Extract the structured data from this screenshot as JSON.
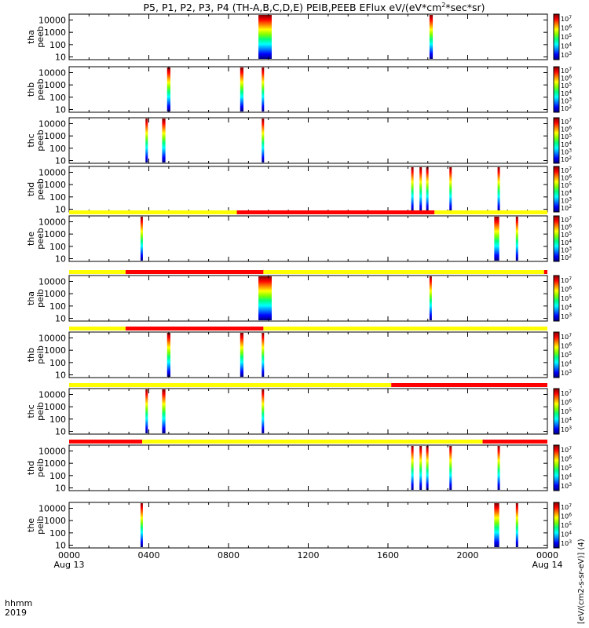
{
  "chart_data": {
    "type": "heatmap",
    "title": "P5, P1, P2, P3, P4 (TH-A,B,C,D,E) PEIB,PEEB EFlux eV/(eV*cm",
    "title_sup": "2",
    "title_tail": "*sec*sr)",
    "x_axis": {
      "label_line1": "hhmm",
      "label_line2": "2019",
      "range": [
        "2019-08-13 00:00",
        "2019-08-14 00:00"
      ],
      "ticks": [
        "0000",
        "0400",
        "0800",
        "1200",
        "1600",
        "2000",
        "0000"
      ],
      "tick_sublabels": {
        "first": "Aug 13",
        "last": "Aug 14"
      }
    },
    "y_axis": {
      "scale": "log",
      "ticks": [
        "10",
        "100",
        "1000",
        "10000"
      ]
    },
    "colorbar_label": "[eV/(cm2-s-sr-eV)] (4)",
    "colorbar_ticks": [
      [
        "10",
        "10",
        "10",
        "10",
        "10"
      ],
      [
        "10",
        "10",
        "10",
        "10",
        "10",
        "10"
      ]
    ],
    "colorbar_ticks_exp": [
      [
        "3",
        "4",
        "5",
        "6",
        "7"
      ],
      [
        "2",
        "3",
        "4",
        "5",
        "6",
        "7"
      ]
    ],
    "panels": [
      {
        "probe": "tha",
        "product": "peeb",
        "colorbar": 0,
        "bursts": [
          {
            "start": "09:30",
            "end": "10:10"
          },
          {
            "start": "18:05",
            "end": "18:15"
          }
        ]
      },
      {
        "probe": "thb",
        "product": "peeb",
        "colorbar": 1,
        "bursts": [
          {
            "start": "04:55",
            "end": "05:05"
          },
          {
            "start": "08:35",
            "end": "08:45"
          },
          {
            "start": "09:40",
            "end": "09:45"
          }
        ]
      },
      {
        "probe": "thc",
        "product": "peeb",
        "colorbar": 1,
        "bursts": [
          {
            "start": "03:50",
            "end": "03:55"
          },
          {
            "start": "04:40",
            "end": "04:50"
          },
          {
            "start": "09:40",
            "end": "09:45"
          }
        ]
      },
      {
        "probe": "thd",
        "product": "peeb",
        "colorbar": 1,
        "bursts": [
          {
            "start": "17:10",
            "end": "17:15"
          },
          {
            "start": "17:35",
            "end": "17:40"
          },
          {
            "start": "17:55",
            "end": "18:00"
          },
          {
            "start": "19:05",
            "end": "19:10"
          },
          {
            "start": "21:30",
            "end": "21:35"
          }
        ]
      },
      {
        "probe": "the",
        "product": "peeb",
        "colorbar": 1,
        "bursts": [
          {
            "start": "03:35",
            "end": "03:40"
          },
          {
            "start": "21:20",
            "end": "21:35"
          },
          {
            "start": "22:25",
            "end": "22:30"
          }
        ],
        "bar": [
          {
            "state": "yellow",
            "start": "00:00",
            "end": "08:25"
          },
          {
            "state": "red",
            "start": "08:25",
            "end": "18:20"
          },
          {
            "state": "yellow",
            "start": "18:20",
            "end": "24:00"
          }
        ]
      },
      {
        "probe": "tha",
        "product": "peib",
        "colorbar": 0,
        "bursts": [
          {
            "start": "09:30",
            "end": "10:10"
          },
          {
            "start": "18:05",
            "end": "18:10"
          }
        ],
        "bar": [
          {
            "state": "yellow",
            "start": "00:00",
            "end": "02:50"
          },
          {
            "state": "red",
            "start": "02:50",
            "end": "09:45"
          },
          {
            "state": "yellow",
            "start": "09:45",
            "end": "23:50"
          },
          {
            "state": "red",
            "start": "23:50",
            "end": "24:00"
          }
        ]
      },
      {
        "probe": "thb",
        "product": "peib",
        "colorbar": 0,
        "bursts": [
          {
            "start": "04:55",
            "end": "05:05"
          },
          {
            "start": "08:35",
            "end": "08:45"
          },
          {
            "start": "09:40",
            "end": "09:45"
          }
        ],
        "bar": [
          {
            "state": "yellow",
            "start": "00:00",
            "end": "02:50"
          },
          {
            "state": "red",
            "start": "02:50",
            "end": "09:45"
          },
          {
            "state": "yellow",
            "start": "09:45",
            "end": "24:00"
          }
        ]
      },
      {
        "probe": "thc",
        "product": "peib",
        "colorbar": 0,
        "bursts": [
          {
            "start": "03:50",
            "end": "03:55"
          },
          {
            "start": "04:40",
            "end": "04:50"
          },
          {
            "start": "09:40",
            "end": "09:45"
          }
        ],
        "bar": [
          {
            "state": "yellow",
            "start": "00:00",
            "end": "16:10"
          },
          {
            "state": "red",
            "start": "16:10",
            "end": "24:00"
          }
        ]
      },
      {
        "probe": "thd",
        "product": "peib",
        "colorbar": 0,
        "bursts": [
          {
            "start": "17:10",
            "end": "17:15"
          },
          {
            "start": "17:35",
            "end": "17:40"
          },
          {
            "start": "17:55",
            "end": "18:00"
          },
          {
            "start": "19:05",
            "end": "19:10"
          },
          {
            "start": "21:30",
            "end": "21:35"
          }
        ],
        "bar": [
          {
            "state": "red",
            "start": "00:00",
            "end": "03:40"
          },
          {
            "state": "yellow",
            "start": "03:40",
            "end": "20:45"
          },
          {
            "state": "red",
            "start": "20:45",
            "end": "24:00"
          }
        ]
      },
      {
        "probe": "the",
        "product": "peib",
        "colorbar": 0,
        "bursts": [
          {
            "start": "03:35",
            "end": "03:40"
          },
          {
            "start": "21:20",
            "end": "21:35"
          },
          {
            "start": "22:25",
            "end": "22:30"
          }
        ]
      }
    ],
    "status_colors": {
      "yellow": "#ffff00",
      "red": "#ff0000"
    },
    "colormap": [
      "#000080",
      "#0000ff",
      "#0080ff",
      "#00ffff",
      "#00ff80",
      "#80ff00",
      "#ffff00",
      "#ff8000",
      "#ff0000",
      "#800000"
    ]
  }
}
